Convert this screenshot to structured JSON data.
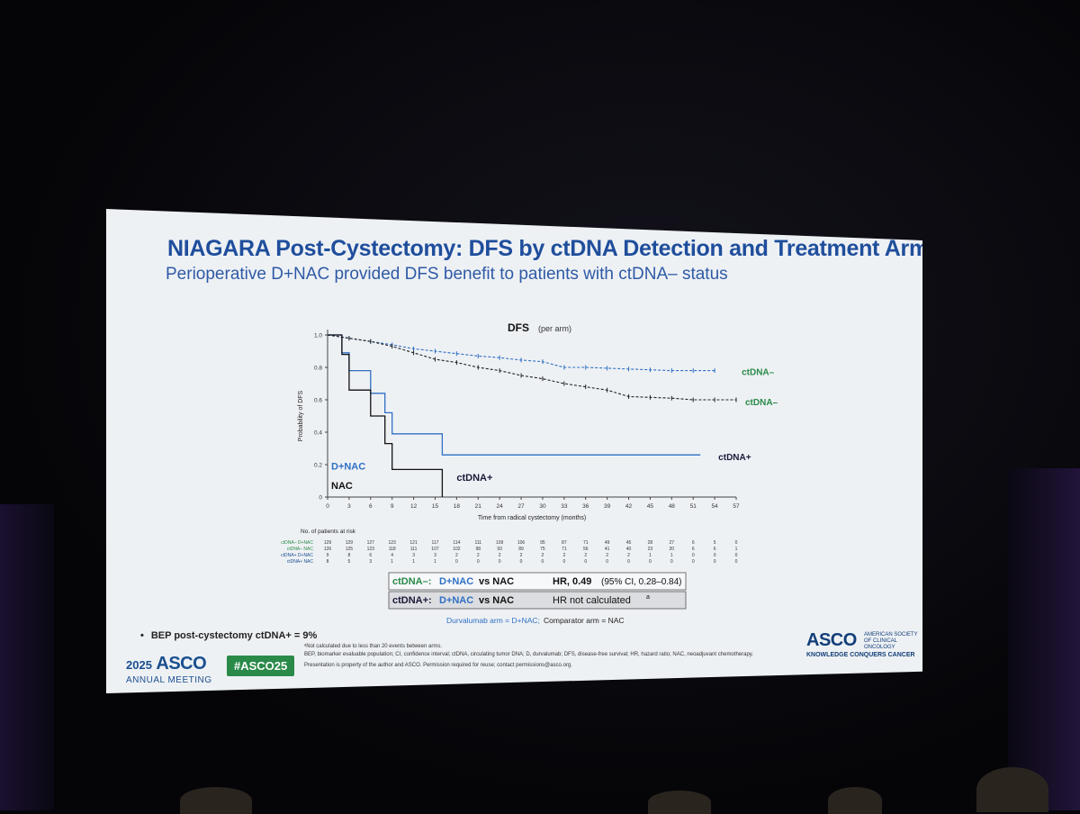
{
  "title": "NIAGARA Post-Cystectomy: DFS by ctDNA Detection and Treatment Arm",
  "subtitle": "Perioperative D+NAC provided DFS benefit to patients with ctDNA– status",
  "chart_data": {
    "type": "line",
    "title": "DFS",
    "title_note": "(per arm)",
    "xlabel": "Time from radical cystectomy (months)",
    "ylabel": "Probability of DFS",
    "xlim": [
      0,
      57
    ],
    "ylim": [
      0,
      1.0
    ],
    "x_ticks": [
      0,
      3,
      6,
      9,
      12,
      15,
      18,
      21,
      24,
      27,
      30,
      33,
      36,
      39,
      42,
      45,
      48,
      51,
      54,
      57
    ],
    "y_ticks": [
      "0",
      "0.2",
      "0.4",
      "0.6",
      "0.8",
      "1.0"
    ],
    "y_tick_values": [
      0,
      0.2,
      0.4,
      0.6,
      0.8,
      1.0
    ],
    "series": [
      {
        "name": "ctDNA– D+NAC",
        "label": "ctDNA–",
        "label_color": "#2a8a49",
        "color": "#2f6fc4",
        "dash": true,
        "points": [
          [
            0,
            1.0
          ],
          [
            3,
            0.98
          ],
          [
            6,
            0.96
          ],
          [
            9,
            0.94
          ],
          [
            12,
            0.915
          ],
          [
            15,
            0.9
          ],
          [
            18,
            0.885
          ],
          [
            21,
            0.87
          ],
          [
            24,
            0.86
          ],
          [
            27,
            0.845
          ],
          [
            30,
            0.835
          ],
          [
            33,
            0.8
          ],
          [
            36,
            0.8
          ],
          [
            39,
            0.795
          ],
          [
            42,
            0.79
          ],
          [
            45,
            0.785
          ],
          [
            48,
            0.78
          ],
          [
            51,
            0.78
          ],
          [
            54,
            0.78
          ]
        ]
      },
      {
        "name": "ctDNA– NAC",
        "label": "ctDNA–",
        "label_color": "#2a8a49",
        "color": "#222222",
        "dash": true,
        "points": [
          [
            0,
            1.0
          ],
          [
            3,
            0.98
          ],
          [
            6,
            0.96
          ],
          [
            9,
            0.93
          ],
          [
            12,
            0.89
          ],
          [
            15,
            0.85
          ],
          [
            18,
            0.83
          ],
          [
            21,
            0.8
          ],
          [
            24,
            0.78
          ],
          [
            27,
            0.75
          ],
          [
            30,
            0.73
          ],
          [
            33,
            0.7
          ],
          [
            36,
            0.68
          ],
          [
            39,
            0.66
          ],
          [
            42,
            0.62
          ],
          [
            45,
            0.615
          ],
          [
            48,
            0.61
          ],
          [
            51,
            0.6
          ],
          [
            54,
            0.6
          ],
          [
            57,
            0.6
          ]
        ]
      },
      {
        "name": "ctDNA+ D+NAC",
        "label": "ctDNA+",
        "label_color": "#1a1a3a",
        "color": "#2f6fc4",
        "dash": false,
        "points": [
          [
            0,
            1.0
          ],
          [
            2,
            1.0
          ],
          [
            2,
            0.89
          ],
          [
            3,
            0.89
          ],
          [
            3,
            0.78
          ],
          [
            6,
            0.78
          ],
          [
            6,
            0.64
          ],
          [
            8,
            0.64
          ],
          [
            8,
            0.52
          ],
          [
            9,
            0.52
          ],
          [
            9,
            0.39
          ],
          [
            16,
            0.39
          ],
          [
            16,
            0.26
          ],
          [
            52,
            0.26
          ]
        ]
      },
      {
        "name": "ctDNA+ NAC",
        "label": "ctDNA+",
        "label_color": "#1a1a3a",
        "color": "#111111",
        "dash": false,
        "points": [
          [
            0,
            1.0
          ],
          [
            2,
            1.0
          ],
          [
            2,
            0.88
          ],
          [
            3,
            0.88
          ],
          [
            3,
            0.66
          ],
          [
            6,
            0.66
          ],
          [
            6,
            0.5
          ],
          [
            8,
            0.5
          ],
          [
            8,
            0.33
          ],
          [
            9,
            0.33
          ],
          [
            9,
            0.17
          ],
          [
            16,
            0.17
          ],
          [
            16,
            0.0
          ]
        ]
      }
    ],
    "inplot_labels": {
      "dnac": "D+NAC",
      "nac": "NAC"
    },
    "risk_table": {
      "header": "No. of patients at risk",
      "rows": [
        {
          "label": "ctDNA– D+NAC",
          "color": "#2a8a49",
          "values": [
            "129",
            "129",
            "127",
            "123",
            "121",
            "117",
            "114",
            "111",
            "109",
            "106",
            "95",
            "87",
            "71",
            "49",
            "45",
            "28",
            "27",
            "6",
            "5",
            "0"
          ]
        },
        {
          "label": "ctDNA– NAC",
          "color": "#2a8a49",
          "values": [
            "126",
            "125",
            "123",
            "118",
            "111",
            "107",
            "102",
            "98",
            "93",
            "89",
            "75",
            "71",
            "56",
            "41",
            "40",
            "23",
            "20",
            "6",
            "6",
            "1"
          ]
        },
        {
          "label": "ctDNA+ D+NAC",
          "color": "#1a4f8f",
          "values": [
            "9",
            "8",
            "6",
            "4",
            "3",
            "3",
            "2",
            "2",
            "2",
            "2",
            "2",
            "2",
            "2",
            "2",
            "2",
            "1",
            "1",
            "0",
            "0",
            "0"
          ]
        },
        {
          "label": "ctDNA+ NAC",
          "color": "#1a4f8f",
          "values": [
            "8",
            "5",
            "3",
            "1",
            "1",
            "1",
            "0",
            "0",
            "0",
            "0",
            "0",
            "0",
            "0",
            "0",
            "0",
            "0",
            "0",
            "0",
            "0",
            "0"
          ]
        }
      ]
    },
    "hr_table": [
      {
        "group": "ctDNA–:",
        "arm": "D+NAC",
        "vs": "vs NAC",
        "hr_label": "HR, 0.49",
        "hr_ci": "(95% CI, 0.28–0.84)"
      },
      {
        "group": "ctDNA+:",
        "arm": "D+NAC",
        "vs": "vs NAC",
        "hr_label": "HR not calculated",
        "hr_sup": "a",
        "hr_ci": ""
      }
    ],
    "arm_note_blue": "Durvalumab arm = D+NAC;",
    "arm_note_black": "Comparator arm = NAC"
  },
  "bullet": "BEP post-cystectomy ctDNA+ = 9%",
  "footnotes": [
    "ᵃNot calculated due to less than 20 events between arms.",
    "BEP, biomarker evaluable population; CI, confidence interval; ctDNA, circulating tumor DNA; D, durvalumab; DFS, disease-free survival; HR, hazard ratio; NAC, neoadjuvant chemotherapy.",
    "Presentation is property of the author and ASCO. Permission required for reuse; contact permissions@asco.org."
  ],
  "meeting": {
    "year": "2025",
    "brand": "ASCO",
    "sub": "ANNUAL MEETING"
  },
  "hashtag": "#ASCO25",
  "asco_logo": {
    "name": "ASCO",
    "org": "AMERICAN SOCIETY OF CLINICAL ONCOLOGY",
    "tagline": "KNOWLEDGE CONQUERS CANCER"
  },
  "colors": {
    "title": "#1f4e9c",
    "green": "#2a8a49",
    "blue": "#2f6fc4"
  }
}
